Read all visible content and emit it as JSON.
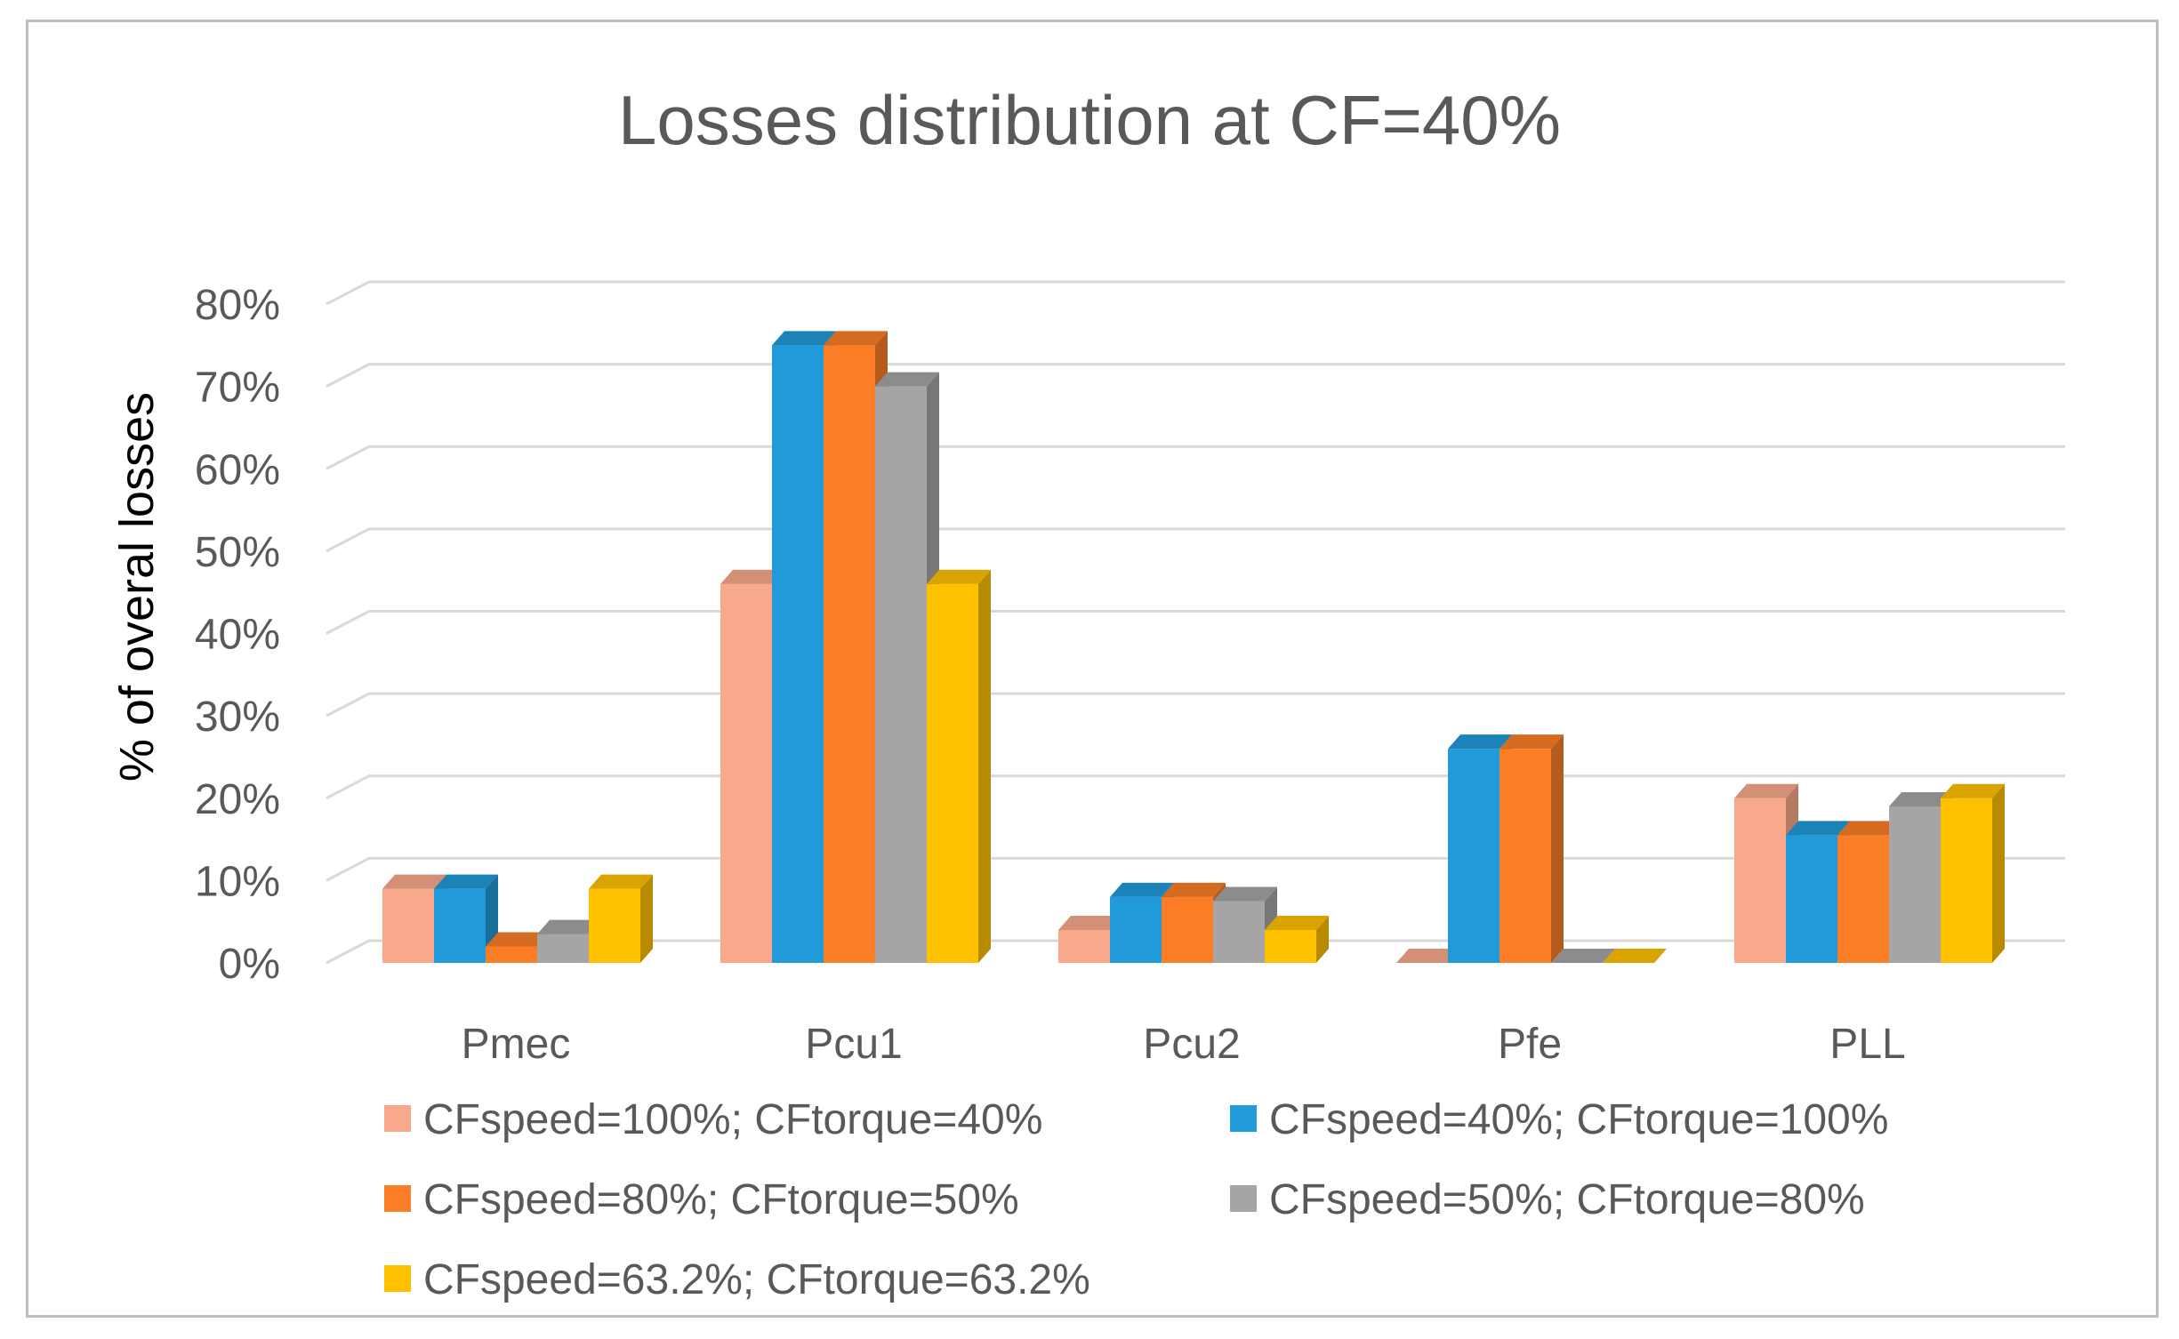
{
  "chart_data": {
    "type": "bar",
    "style": "3d-clustered-column",
    "title": "Losses distribution at  CF=40%",
    "ylabel": "% of overal losses",
    "xlabel": "",
    "ylim": [
      0,
      0.8
    ],
    "yticks": [
      0,
      0.1,
      0.2,
      0.3,
      0.4,
      0.5,
      0.6,
      0.7,
      0.8
    ],
    "ytick_labels": [
      "0%",
      "10%",
      "20%",
      "30%",
      "40%",
      "50%",
      "60%",
      "70%",
      "80%"
    ],
    "grid": true,
    "legend_position": "bottom",
    "categories": [
      "Pmec",
      "Pcu1",
      "Pcu2",
      "Pfe",
      "PLL"
    ],
    "series": [
      {
        "name": "CFspeed=100%; CFtorque=40%",
        "color": "#f8a98b",
        "values": [
          0.09,
          0.46,
          0.04,
          0.0,
          0.2
        ]
      },
      {
        "name": "CFspeed=40%; CFtorque=100%",
        "color": "#219ad9",
        "values": [
          0.09,
          0.75,
          0.08,
          0.26,
          0.155
        ]
      },
      {
        "name": "CFspeed=80%; CFtorque=50%",
        "color": "#fb7e27",
        "values": [
          0.02,
          0.75,
          0.08,
          0.26,
          0.155
        ]
      },
      {
        "name": "CFspeed=50%; CFtorque=80%",
        "color": "#a5a5a5",
        "values": [
          0.035,
          0.7,
          0.075,
          0.0,
          0.19
        ]
      },
      {
        "name": "CFspeed=63.2%; CFtorque=63.2%",
        "color": "#ffc000",
        "values": [
          0.09,
          0.46,
          0.04,
          0.0,
          0.2
        ]
      }
    ]
  }
}
